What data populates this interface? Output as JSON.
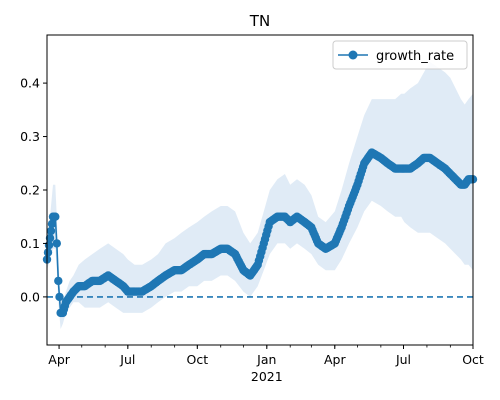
{
  "chart_data": {
    "type": "line",
    "title": "TN",
    "xlabel": "",
    "ylabel": "",
    "x_ticks": [
      {
        "date": "2020-04-01",
        "label": "Apr"
      },
      {
        "date": "2020-07-01",
        "label": "Jul"
      },
      {
        "date": "2020-10-01",
        "label": "Oct"
      },
      {
        "date": "2021-01-01",
        "label": "Jan"
      },
      {
        "date": "2021-04-01",
        "label": "Apr"
      },
      {
        "date": "2021-07-01",
        "label": "Jul"
      },
      {
        "date": "2021-10-01",
        "label": "Oct"
      }
    ],
    "year_label": "2021",
    "xlim": [
      "2020-03-16",
      "2021-10-01"
    ],
    "ylim": [
      -0.09,
      0.49
    ],
    "y_ticks": [
      0.0,
      0.1,
      0.2,
      0.3,
      0.4
    ],
    "y_tick_labels": [
      "0.0",
      "0.1",
      "0.2",
      "0.3",
      "0.4"
    ],
    "reference_line": {
      "y": 0.0,
      "style": "dashed"
    },
    "legend_position": "top-right",
    "colors": {
      "series": "#1f77b4",
      "band": "#dbe7f4"
    },
    "series": [
      {
        "name": "growth_rate",
        "x": [
          "2020-03-16",
          "2020-03-20",
          "2020-03-24",
          "2020-03-27",
          "2020-03-29",
          "2020-03-31",
          "2020-04-03",
          "2020-04-06",
          "2020-04-10",
          "2020-04-15",
          "2020-04-20",
          "2020-04-27",
          "2020-05-05",
          "2020-05-15",
          "2020-05-25",
          "2020-06-05",
          "2020-06-15",
          "2020-06-25",
          "2020-07-01",
          "2020-07-10",
          "2020-07-20",
          "2020-08-01",
          "2020-08-10",
          "2020-08-20",
          "2020-09-01",
          "2020-09-10",
          "2020-09-20",
          "2020-10-01",
          "2020-10-10",
          "2020-10-20",
          "2020-11-01",
          "2020-11-10",
          "2020-11-20",
          "2020-12-01",
          "2020-12-10",
          "2020-12-20",
          "2020-12-28",
          "2021-01-05",
          "2021-01-15",
          "2021-01-25",
          "2021-02-01",
          "2021-02-10",
          "2021-02-20",
          "2021-03-01",
          "2021-03-10",
          "2021-03-20",
          "2021-04-01",
          "2021-04-10",
          "2021-04-20",
          "2021-05-01",
          "2021-05-10",
          "2021-05-20",
          "2021-06-01",
          "2021-06-10",
          "2021-06-20",
          "2021-06-28",
          "2021-07-02",
          "2021-07-10",
          "2021-07-20",
          "2021-07-28",
          "2021-08-05",
          "2021-08-15",
          "2021-08-25",
          "2021-09-01",
          "2021-09-08",
          "2021-09-15",
          "2021-09-20",
          "2021-09-25",
          "2021-10-01"
        ],
        "y": [
          0.07,
          0.11,
          0.15,
          0.15,
          0.1,
          0.03,
          -0.03,
          -0.03,
          -0.01,
          0.0,
          0.01,
          0.02,
          0.02,
          0.03,
          0.03,
          0.04,
          0.03,
          0.02,
          0.01,
          0.01,
          0.01,
          0.02,
          0.03,
          0.04,
          0.05,
          0.05,
          0.06,
          0.07,
          0.08,
          0.08,
          0.09,
          0.09,
          0.08,
          0.05,
          0.04,
          0.06,
          0.1,
          0.14,
          0.15,
          0.15,
          0.14,
          0.15,
          0.14,
          0.13,
          0.1,
          0.09,
          0.1,
          0.13,
          0.17,
          0.21,
          0.25,
          0.27,
          0.26,
          0.25,
          0.24,
          0.24,
          0.24,
          0.24,
          0.25,
          0.26,
          0.26,
          0.25,
          0.24,
          0.23,
          0.22,
          0.21,
          0.21,
          0.22,
          0.22
        ],
        "lower": [
          0.05,
          0.07,
          0.09,
          0.09,
          0.05,
          -0.01,
          -0.06,
          -0.05,
          -0.03,
          -0.02,
          -0.01,
          -0.01,
          -0.02,
          -0.02,
          -0.02,
          -0.01,
          -0.02,
          -0.03,
          -0.03,
          -0.03,
          -0.03,
          -0.02,
          -0.01,
          0.0,
          0.01,
          0.01,
          0.02,
          0.02,
          0.03,
          0.03,
          0.04,
          0.04,
          0.03,
          0.01,
          0.0,
          0.02,
          0.05,
          0.08,
          0.1,
          0.1,
          0.09,
          0.1,
          0.09,
          0.08,
          0.06,
          0.05,
          0.05,
          0.07,
          0.1,
          0.13,
          0.16,
          0.18,
          0.17,
          0.16,
          0.15,
          0.15,
          0.14,
          0.13,
          0.12,
          0.12,
          0.12,
          0.11,
          0.1,
          0.09,
          0.08,
          0.07,
          0.06,
          0.06,
          0.05
        ],
        "upper": [
          0.09,
          0.15,
          0.21,
          0.21,
          0.15,
          0.07,
          0.0,
          -0.01,
          0.01,
          0.03,
          0.04,
          0.06,
          0.07,
          0.08,
          0.09,
          0.1,
          0.09,
          0.08,
          0.07,
          0.06,
          0.06,
          0.07,
          0.08,
          0.1,
          0.11,
          0.12,
          0.13,
          0.14,
          0.15,
          0.16,
          0.17,
          0.17,
          0.16,
          0.12,
          0.1,
          0.12,
          0.16,
          0.2,
          0.22,
          0.23,
          0.21,
          0.22,
          0.21,
          0.19,
          0.15,
          0.14,
          0.16,
          0.2,
          0.25,
          0.3,
          0.34,
          0.37,
          0.37,
          0.37,
          0.37,
          0.38,
          0.38,
          0.39,
          0.4,
          0.42,
          0.44,
          0.43,
          0.42,
          0.41,
          0.39,
          0.37,
          0.36,
          0.37,
          0.38
        ]
      }
    ]
  }
}
